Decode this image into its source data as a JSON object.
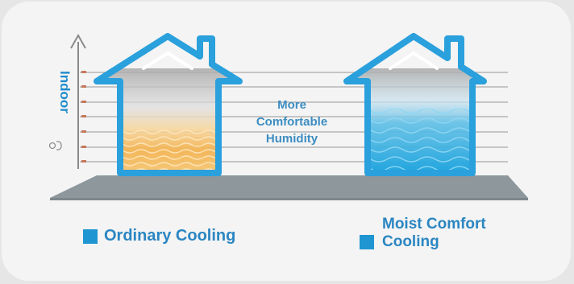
{
  "diagram": {
    "axis_label": "Indoor",
    "center_text": [
      "More",
      "Comfortable",
      "Humidity"
    ],
    "legend": [
      {
        "label": "Ordinary Cooling",
        "color": "#1f95d2"
      },
      {
        "label_lines": [
          "Moist Comfort",
          "Cooling"
        ],
        "color": "#1f95d2"
      }
    ],
    "colors": {
      "house_outline": "#2aa0dc",
      "ground": "#8d979c",
      "lines": "#a9a9a9",
      "ordinary_fill": "#f3b352",
      "moist_fill": "#1aa2dd"
    },
    "icons": [
      "thermometer-icon"
    ]
  }
}
